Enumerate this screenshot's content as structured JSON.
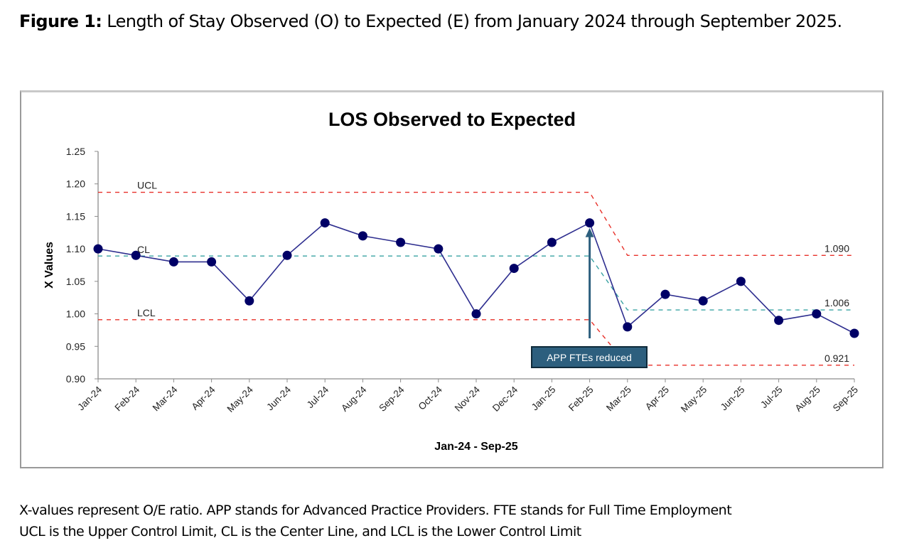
{
  "caption": {
    "label": "Figure 1:",
    "text": " Length of Stay Observed (O) to Expected (E) from January 2024 through September 2025."
  },
  "footer": {
    "line1": "X-values represent O/E ratio. APP stands for Advanced Practice Providers. FTE stands for Full Time Employment",
    "line2": "UCL is the Upper Control Limit, CL is the Center Line, and LCL is the Lower Control Limit"
  },
  "colors": {
    "series": "#000066",
    "series_line": "#2e2e8f",
    "control_limit": "#e8312a",
    "center_line": "#3aa3a3",
    "annotation_fill": "#2d5f7e",
    "annotation_border": "#0f2a3a"
  },
  "chart_data": {
    "type": "line",
    "title": "LOS Observed to Expected",
    "xlabel": "Jan-24 - Sep-25",
    "ylabel": "X Values",
    "ylim": [
      0.9,
      1.25
    ],
    "yticks": [
      0.9,
      0.95,
      1.0,
      1.05,
      1.1,
      1.15,
      1.2,
      1.25
    ],
    "ytick_labels": [
      "0.90",
      "0.95",
      "1.00",
      "1.05",
      "1.10",
      "1.15",
      "1.20",
      "1.25"
    ],
    "grid": false,
    "legend": "none",
    "categories": [
      "Jan-24",
      "Feb-24",
      "Mar-24",
      "Apr-24",
      "May-24",
      "Jun-24",
      "Jul-24",
      "Aug-24",
      "Sep-24",
      "Oct-24",
      "Nov-24",
      "Dec-24",
      "Jan-25",
      "Feb-25",
      "Mar-25",
      "Apr-25",
      "May-25",
      "Jun-25",
      "Jul-25",
      "Aug-25",
      "Sep-25"
    ],
    "series": [
      {
        "name": "O/E Ratio",
        "values": [
          1.1,
          1.09,
          1.08,
          1.08,
          1.02,
          1.09,
          1.14,
          1.12,
          1.11,
          1.1,
          1.0,
          1.07,
          1.11,
          1.14,
          0.98,
          1.03,
          1.02,
          1.05,
          0.99,
          1.0,
          0.97
        ]
      },
      {
        "name": "UCL",
        "values": [
          1.187,
          1.187,
          1.187,
          1.187,
          1.187,
          1.187,
          1.187,
          1.187,
          1.187,
          1.187,
          1.187,
          1.187,
          1.187,
          1.187,
          1.09,
          1.09,
          1.09,
          1.09,
          1.09,
          1.09,
          1.09
        ]
      },
      {
        "name": "CL",
        "values": [
          1.089,
          1.089,
          1.089,
          1.089,
          1.089,
          1.089,
          1.089,
          1.089,
          1.089,
          1.089,
          1.089,
          1.089,
          1.089,
          1.089,
          1.006,
          1.006,
          1.006,
          1.006,
          1.006,
          1.006,
          1.006
        ]
      },
      {
        "name": "LCL",
        "values": [
          0.991,
          0.991,
          0.991,
          0.991,
          0.991,
          0.991,
          0.991,
          0.991,
          0.991,
          0.991,
          0.991,
          0.991,
          0.991,
          0.991,
          0.921,
          0.921,
          0.921,
          0.921,
          0.921,
          0.921,
          0.921
        ]
      }
    ],
    "line_labels": {
      "ucl": "UCL",
      "cl": "CL",
      "lcl": "LCL",
      "ucl_value": "1.090",
      "cl_value": "1.006",
      "lcl_value": "0.921"
    },
    "annotations": [
      {
        "text": "APP FTEs reduced",
        "category": "Feb-25",
        "arrow_target_value": 1.14
      }
    ]
  }
}
